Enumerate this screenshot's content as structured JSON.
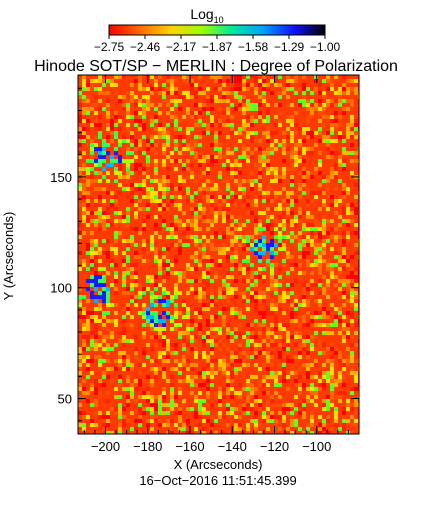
{
  "chart_data": {
    "type": "heatmap",
    "title": "Hinode SOT/SP − MERLIN : Degree of Polarization",
    "subtitle": "16−Oct−2016 11:51:45.399",
    "colorbar": {
      "label_base": "Log",
      "label_sub": "10",
      "range": [
        -2.75,
        -1.0
      ],
      "ticks": [
        "−2.75",
        "−2.46",
        "−2.17",
        "−1.87",
        "−1.58",
        "−1.29",
        "−1.00"
      ],
      "colormap": [
        "#ff0000",
        "#ff6a00",
        "#ffd200",
        "#9cff00",
        "#00e8a0",
        "#00a0ff",
        "#1010ff",
        "#000000"
      ]
    },
    "xlabel": "X (Arcseconds)",
    "ylabel": "Y (Arcseconds)",
    "xlim": [
      -213,
      -80
    ],
    "ylim": [
      34,
      196
    ],
    "xticks": [
      -200,
      -180,
      -160,
      -140,
      -120,
      -100
    ],
    "yticks": [
      50,
      100,
      150
    ],
    "xtick_labels": [
      "−200",
      "−180",
      "−160",
      "−140",
      "−120",
      "−100"
    ],
    "ytick_labels": [
      "50",
      "100",
      "150"
    ],
    "dominant_value_range": [
      -2.75,
      -2.46
    ],
    "features": [
      {
        "label": "high polarization network patch",
        "x": -205,
        "y": 100
      },
      {
        "label": "high polarization patch",
        "x": -175,
        "y": 90
      },
      {
        "label": "high polarization patch",
        "x": -125,
        "y": 118
      },
      {
        "label": "high polarization patch",
        "x": -200,
        "y": 160
      }
    ]
  }
}
